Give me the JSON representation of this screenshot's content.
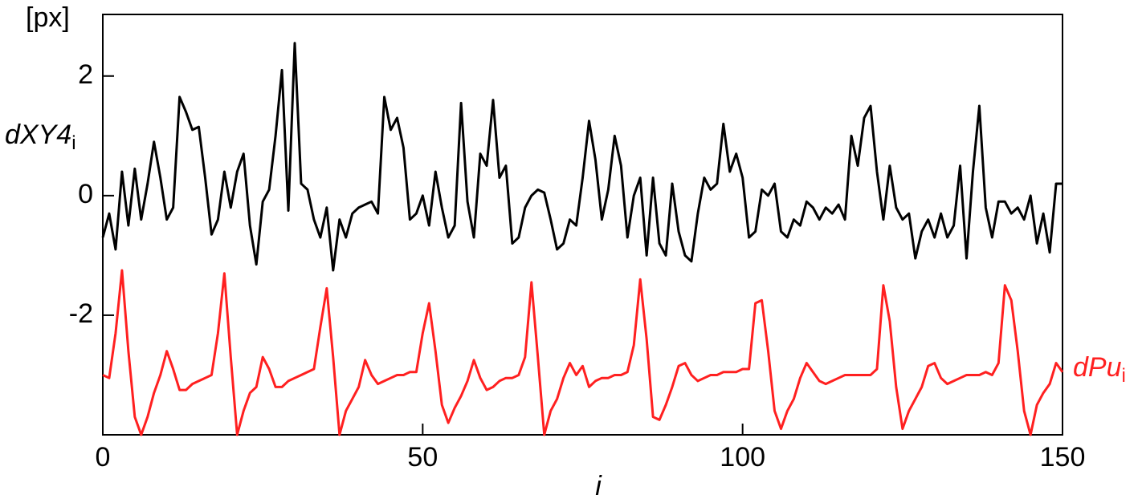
{
  "chart_data": {
    "type": "line",
    "y_unit_label": "[px]",
    "x_label": "i",
    "xlim": [
      0,
      150
    ],
    "xticks": [
      0,
      50,
      100,
      150
    ],
    "ylim": [
      -4,
      3.03
    ],
    "yticks": [
      -2,
      0,
      2
    ],
    "x": [
      0,
      1,
      2,
      3,
      4,
      5,
      6,
      7,
      8,
      9,
      10,
      11,
      12,
      13,
      14,
      15,
      16,
      17,
      18,
      19,
      20,
      21,
      22,
      23,
      24,
      25,
      26,
      27,
      28,
      29,
      30,
      31,
      32,
      33,
      34,
      35,
      36,
      37,
      38,
      39,
      40,
      41,
      42,
      43,
      44,
      45,
      46,
      47,
      48,
      49,
      50,
      51,
      52,
      53,
      54,
      55,
      56,
      57,
      58,
      59,
      60,
      61,
      62,
      63,
      64,
      65,
      66,
      67,
      68,
      69,
      70,
      71,
      72,
      73,
      74,
      75,
      76,
      77,
      78,
      79,
      80,
      81,
      82,
      83,
      84,
      85,
      86,
      87,
      88,
      89,
      90,
      91,
      92,
      93,
      94,
      95,
      96,
      97,
      98,
      99,
      100,
      101,
      102,
      103,
      104,
      105,
      106,
      107,
      108,
      109,
      110,
      111,
      112,
      113,
      114,
      115,
      116,
      117,
      118,
      119,
      120,
      121,
      122,
      123,
      124,
      125,
      126,
      127,
      128,
      129,
      130,
      131,
      132,
      133,
      134,
      135,
      136,
      137,
      138,
      139,
      140,
      141,
      142,
      143,
      144,
      145,
      146,
      147,
      148,
      149,
      150
    ],
    "series": [
      {
        "name": "dXY4",
        "name_subscript": "i",
        "color": "#000000",
        "values": [
          -0.7,
          -0.3,
          -0.9,
          0.4,
          -0.5,
          0.45,
          -0.4,
          0.2,
          0.9,
          0.3,
          -0.4,
          -0.2,
          1.65,
          1.4,
          1.1,
          1.15,
          0.3,
          -0.65,
          -0.4,
          0.4,
          -0.2,
          0.4,
          0.7,
          -0.5,
          -1.15,
          -0.1,
          0.1,
          1.0,
          2.1,
          -0.25,
          2.55,
          0.2,
          0.1,
          -0.4,
          -0.7,
          -0.2,
          -1.25,
          -0.4,
          -0.7,
          -0.3,
          -0.2,
          -0.15,
          -0.1,
          -0.3,
          1.65,
          1.1,
          1.3,
          0.8,
          -0.4,
          -0.3,
          0.0,
          -0.5,
          0.4,
          -0.2,
          -0.7,
          -0.5,
          1.55,
          -0.1,
          -0.7,
          0.7,
          0.5,
          1.6,
          0.3,
          0.5,
          -0.8,
          -0.7,
          -0.2,
          0.0,
          0.1,
          0.05,
          -0.4,
          -0.9,
          -0.8,
          -0.4,
          -0.5,
          0.3,
          1.25,
          0.6,
          -0.4,
          0.1,
          1.0,
          0.5,
          -0.7,
          0.0,
          0.3,
          -1.0,
          0.3,
          -0.8,
          -1.0,
          0.2,
          -0.6,
          -1.0,
          -1.1,
          -0.3,
          0.3,
          0.1,
          0.2,
          1.2,
          0.4,
          0.7,
          0.3,
          -0.7,
          -0.6,
          0.1,
          0.0,
          0.2,
          -0.6,
          -0.7,
          -0.4,
          -0.5,
          -0.1,
          -0.2,
          -0.4,
          -0.2,
          -0.3,
          -0.15,
          -0.4,
          1.0,
          0.5,
          1.3,
          1.5,
          0.4,
          -0.4,
          0.5,
          -0.2,
          -0.4,
          -0.3,
          -1.05,
          -0.6,
          -0.4,
          -0.7,
          -0.3,
          -0.7,
          -0.5,
          0.5,
          -1.05,
          0.4,
          1.5,
          -0.2,
          -0.7,
          -0.1,
          -0.1,
          -0.3,
          -0.2,
          -0.4,
          0.0,
          -0.8,
          -0.3,
          -0.95,
          0.2,
          0.2
        ]
      },
      {
        "name": "dPu",
        "name_subscript": "i",
        "color": "#ff2020",
        "values": [
          -3.0,
          -3.05,
          -2.3,
          -1.25,
          -2.6,
          -3.7,
          -4.0,
          -3.7,
          -3.3,
          -3.0,
          -2.6,
          -2.9,
          -3.25,
          -3.25,
          -3.15,
          -3.1,
          -3.05,
          -3.0,
          -2.3,
          -1.3,
          -2.7,
          -4.0,
          -3.6,
          -3.3,
          -3.2,
          -2.7,
          -2.9,
          -3.2,
          -3.2,
          -3.1,
          -3.05,
          -3.0,
          -2.95,
          -2.9,
          -2.2,
          -1.55,
          -2.7,
          -4.0,
          -3.6,
          -3.4,
          -3.2,
          -2.75,
          -3.0,
          -3.15,
          -3.1,
          -3.05,
          -3.0,
          -3.0,
          -2.95,
          -2.95,
          -2.3,
          -1.8,
          -2.6,
          -3.5,
          -3.8,
          -3.55,
          -3.35,
          -3.1,
          -2.75,
          -3.05,
          -3.25,
          -3.2,
          -3.1,
          -3.05,
          -3.05,
          -3.0,
          -2.7,
          -1.45,
          -2.7,
          -4.0,
          -3.6,
          -3.4,
          -3.05,
          -2.8,
          -3.0,
          -2.85,
          -3.2,
          -3.1,
          -3.05,
          -3.05,
          -3.0,
          -3.0,
          -2.95,
          -2.5,
          -1.4,
          -2.4,
          -3.7,
          -3.75,
          -3.5,
          -3.2,
          -2.85,
          -2.8,
          -3.0,
          -3.1,
          -3.05,
          -3.0,
          -3.0,
          -2.95,
          -2.95,
          -2.95,
          -2.9,
          -2.9,
          -1.8,
          -1.75,
          -2.6,
          -3.6,
          -3.9,
          -3.6,
          -3.4,
          -3.05,
          -2.8,
          -2.95,
          -3.1,
          -3.15,
          -3.1,
          -3.05,
          -3.0,
          -3.0,
          -3.0,
          -3.0,
          -3.0,
          -2.9,
          -1.5,
          -2.1,
          -3.2,
          -3.9,
          -3.6,
          -3.4,
          -3.2,
          -2.85,
          -2.8,
          -3.05,
          -3.15,
          -3.1,
          -3.05,
          -3.0,
          -3.0,
          -3.0,
          -2.95,
          -3.0,
          -2.8,
          -1.5,
          -1.75,
          -2.6,
          -3.6,
          -4.0,
          -3.5,
          -3.3,
          -3.15,
          -2.8,
          -2.95
        ]
      }
    ]
  }
}
